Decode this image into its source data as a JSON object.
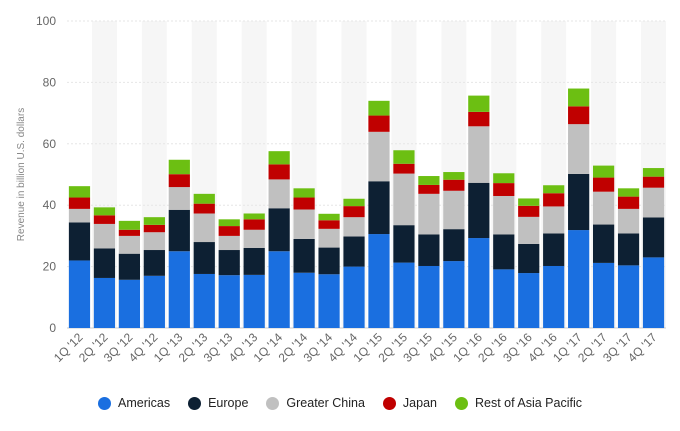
{
  "chart_data": {
    "type": "bar",
    "stacked": true,
    "title": "",
    "xlabel": "",
    "ylabel": "Revenue in billion U.S. dollars",
    "ylim": [
      0,
      100
    ],
    "yticks": [
      0,
      20,
      40,
      60,
      80,
      100
    ],
    "grid": true,
    "legend_position": "bottom",
    "categories": [
      "1Q '12",
      "2Q '12",
      "3Q '12",
      "4Q '12",
      "1Q '13",
      "2Q '13",
      "3Q '13",
      "4Q '13",
      "1Q '14",
      "2Q '14",
      "3Q '14",
      "4Q '14",
      "1Q '15",
      "2Q '15",
      "3Q '15",
      "4Q '15",
      "1Q '16",
      "2Q '16",
      "3Q '16",
      "4Q '16",
      "1Q '17",
      "2Q '17",
      "3Q '17",
      "4Q '17"
    ],
    "series": [
      {
        "name": "Americas",
        "color": "#1a6fe0",
        "values": [
          22,
          16.3,
          15.7,
          17,
          25,
          17.6,
          17.2,
          17.3,
          25,
          18,
          17.5,
          20,
          30.6,
          21.3,
          20.2,
          21.8,
          29.3,
          19.1,
          17.9,
          20.2,
          31.9,
          21.2,
          20.4,
          23
        ]
      },
      {
        "name": "Europe",
        "color": "#0d2033",
        "values": [
          12.4,
          9.6,
          8.5,
          8.4,
          13.5,
          10.4,
          8.2,
          8.8,
          14,
          11,
          8.7,
          9.8,
          17.2,
          12.2,
          10.3,
          10.4,
          18,
          11.4,
          9.5,
          10.6,
          18.3,
          12.5,
          10.4,
          13
        ]
      },
      {
        "name": "Greater China",
        "color": "#c0c0c0",
        "values": [
          4.4,
          8,
          5.8,
          5.8,
          7.4,
          9.3,
          4.6,
          5.9,
          9.4,
          9.6,
          6.1,
          6.3,
          16.1,
          16.8,
          13.2,
          12.5,
          18.4,
          12.5,
          8.8,
          8.8,
          16.2,
          10.7,
          8,
          9.7
        ]
      },
      {
        "name": "Japan",
        "color": "#c00000",
        "values": [
          3.7,
          2.8,
          2,
          2.4,
          4.2,
          3.2,
          3.2,
          3.4,
          4.9,
          3.9,
          2.8,
          3.6,
          5.3,
          3.2,
          2.9,
          3.6,
          4.7,
          4.2,
          3.6,
          4.3,
          5.8,
          4.6,
          4,
          3.6
        ]
      },
      {
        "name": "Rest of Asia Pacific",
        "color": "#6cbf12",
        "values": [
          3.7,
          2.6,
          2.9,
          2.5,
          4.7,
          3.2,
          2.2,
          1.9,
          4.3,
          3,
          2.1,
          2.4,
          4.8,
          4.4,
          2.9,
          2.5,
          5.3,
          3.2,
          2.4,
          2.6,
          5.8,
          3.9,
          2.7,
          2.8
        ]
      }
    ]
  }
}
